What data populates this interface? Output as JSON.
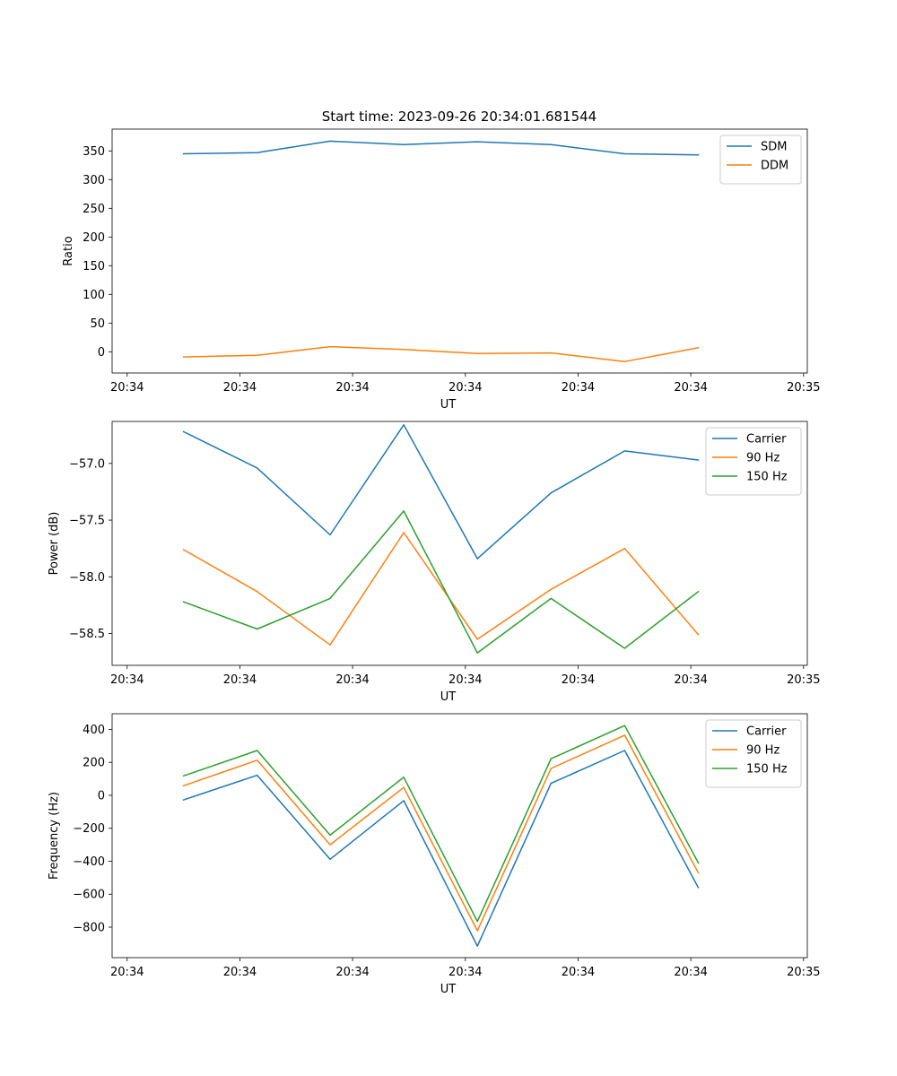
{
  "figure": {
    "title": "Start time: 2023-09-26 20:34:01.681544"
  },
  "chart_data": [
    {
      "type": "line",
      "title": "Start time: 2023-09-26 20:34:01.681544",
      "xlabel": "UT",
      "ylabel": "Ratio",
      "xlim": [
        0,
        9.25
      ],
      "ylim": [
        -37,
        388
      ],
      "xticks": [
        0.2,
        1.7,
        3.2,
        4.7,
        6.2,
        7.7,
        9.2
      ],
      "xtick_labels": [
        "20:34",
        "20:34",
        "20:34",
        "20:34",
        "20:34",
        "20:34",
        "20:35"
      ],
      "yticks": [
        0,
        50,
        100,
        150,
        200,
        250,
        300,
        350
      ],
      "ytick_labels": [
        "0",
        "50",
        "100",
        "150",
        "200",
        "250",
        "300",
        "350"
      ],
      "x": [
        0.95,
        1.93,
        2.9,
        3.88,
        4.86,
        5.84,
        6.82,
        7.8
      ],
      "legend_position": "top-right",
      "series": [
        {
          "name": "SDM",
          "color": "#1f77b4",
          "values": [
            345,
            347,
            367,
            361,
            366,
            361,
            345,
            343
          ]
        },
        {
          "name": "DDM",
          "color": "#ff7f0e",
          "values": [
            -9,
            -6,
            9,
            4,
            -3,
            -2,
            -17,
            7
          ]
        }
      ]
    },
    {
      "type": "line",
      "title": "",
      "xlabel": "UT",
      "ylabel": "Power (dB)",
      "xlim": [
        0,
        9.25
      ],
      "ylim": [
        -58.78,
        -56.63
      ],
      "xticks": [
        0.2,
        1.7,
        3.2,
        4.7,
        6.2,
        7.7,
        9.2
      ],
      "xtick_labels": [
        "20:34",
        "20:34",
        "20:34",
        "20:34",
        "20:34",
        "20:34",
        "20:35"
      ],
      "yticks": [
        -58.5,
        -58.0,
        -57.5,
        -57.0
      ],
      "ytick_labels": [
        "−58.5",
        "−58.0",
        "−57.5",
        "−57.0"
      ],
      "x": [
        0.95,
        1.93,
        2.9,
        3.88,
        4.86,
        5.84,
        6.82,
        7.8
      ],
      "legend_position": "top-right",
      "series": [
        {
          "name": "Carrier",
          "color": "#1f77b4",
          "values": [
            -56.72,
            -57.04,
            -57.63,
            -56.66,
            -57.84,
            -57.26,
            -56.89,
            -56.97
          ]
        },
        {
          "name": "90 Hz",
          "color": "#ff7f0e",
          "values": [
            -57.76,
            -58.13,
            -58.6,
            -57.61,
            -58.55,
            -58.11,
            -57.75,
            -58.51
          ]
        },
        {
          "name": "150 Hz",
          "color": "#2ca02c",
          "values": [
            -58.22,
            -58.46,
            -58.19,
            -57.42,
            -58.67,
            -58.19,
            -58.63,
            -58.13
          ]
        }
      ]
    },
    {
      "type": "line",
      "title": "",
      "xlabel": "UT",
      "ylabel": "Frequency (Hz)",
      "xlim": [
        0,
        9.25
      ],
      "ylim": [
        -985,
        495
      ],
      "xticks": [
        0.2,
        1.7,
        3.2,
        4.7,
        6.2,
        7.7,
        9.2
      ],
      "xtick_labels": [
        "20:34",
        "20:34",
        "20:34",
        "20:34",
        "20:34",
        "20:34",
        "20:35"
      ],
      "yticks": [
        -800,
        -600,
        -400,
        -200,
        0,
        200,
        400
      ],
      "ytick_labels": [
        "−800",
        "−600",
        "−400",
        "−200",
        "0",
        "200",
        "400"
      ],
      "x": [
        0.95,
        1.93,
        2.9,
        3.88,
        4.86,
        5.84,
        6.82,
        7.8
      ],
      "legend_position": "top-right",
      "series": [
        {
          "name": "Carrier",
          "color": "#1f77b4",
          "values": [
            -28,
            122,
            -388,
            -32,
            -915,
            73,
            272,
            -560
          ]
        },
        {
          "name": "90 Hz",
          "color": "#ff7f0e",
          "values": [
            58,
            213,
            -300,
            48,
            -822,
            163,
            365,
            -470
          ]
        },
        {
          "name": "150 Hz",
          "color": "#2ca02c",
          "values": [
            118,
            272,
            -242,
            110,
            -765,
            222,
            423,
            -410
          ]
        }
      ]
    }
  ]
}
